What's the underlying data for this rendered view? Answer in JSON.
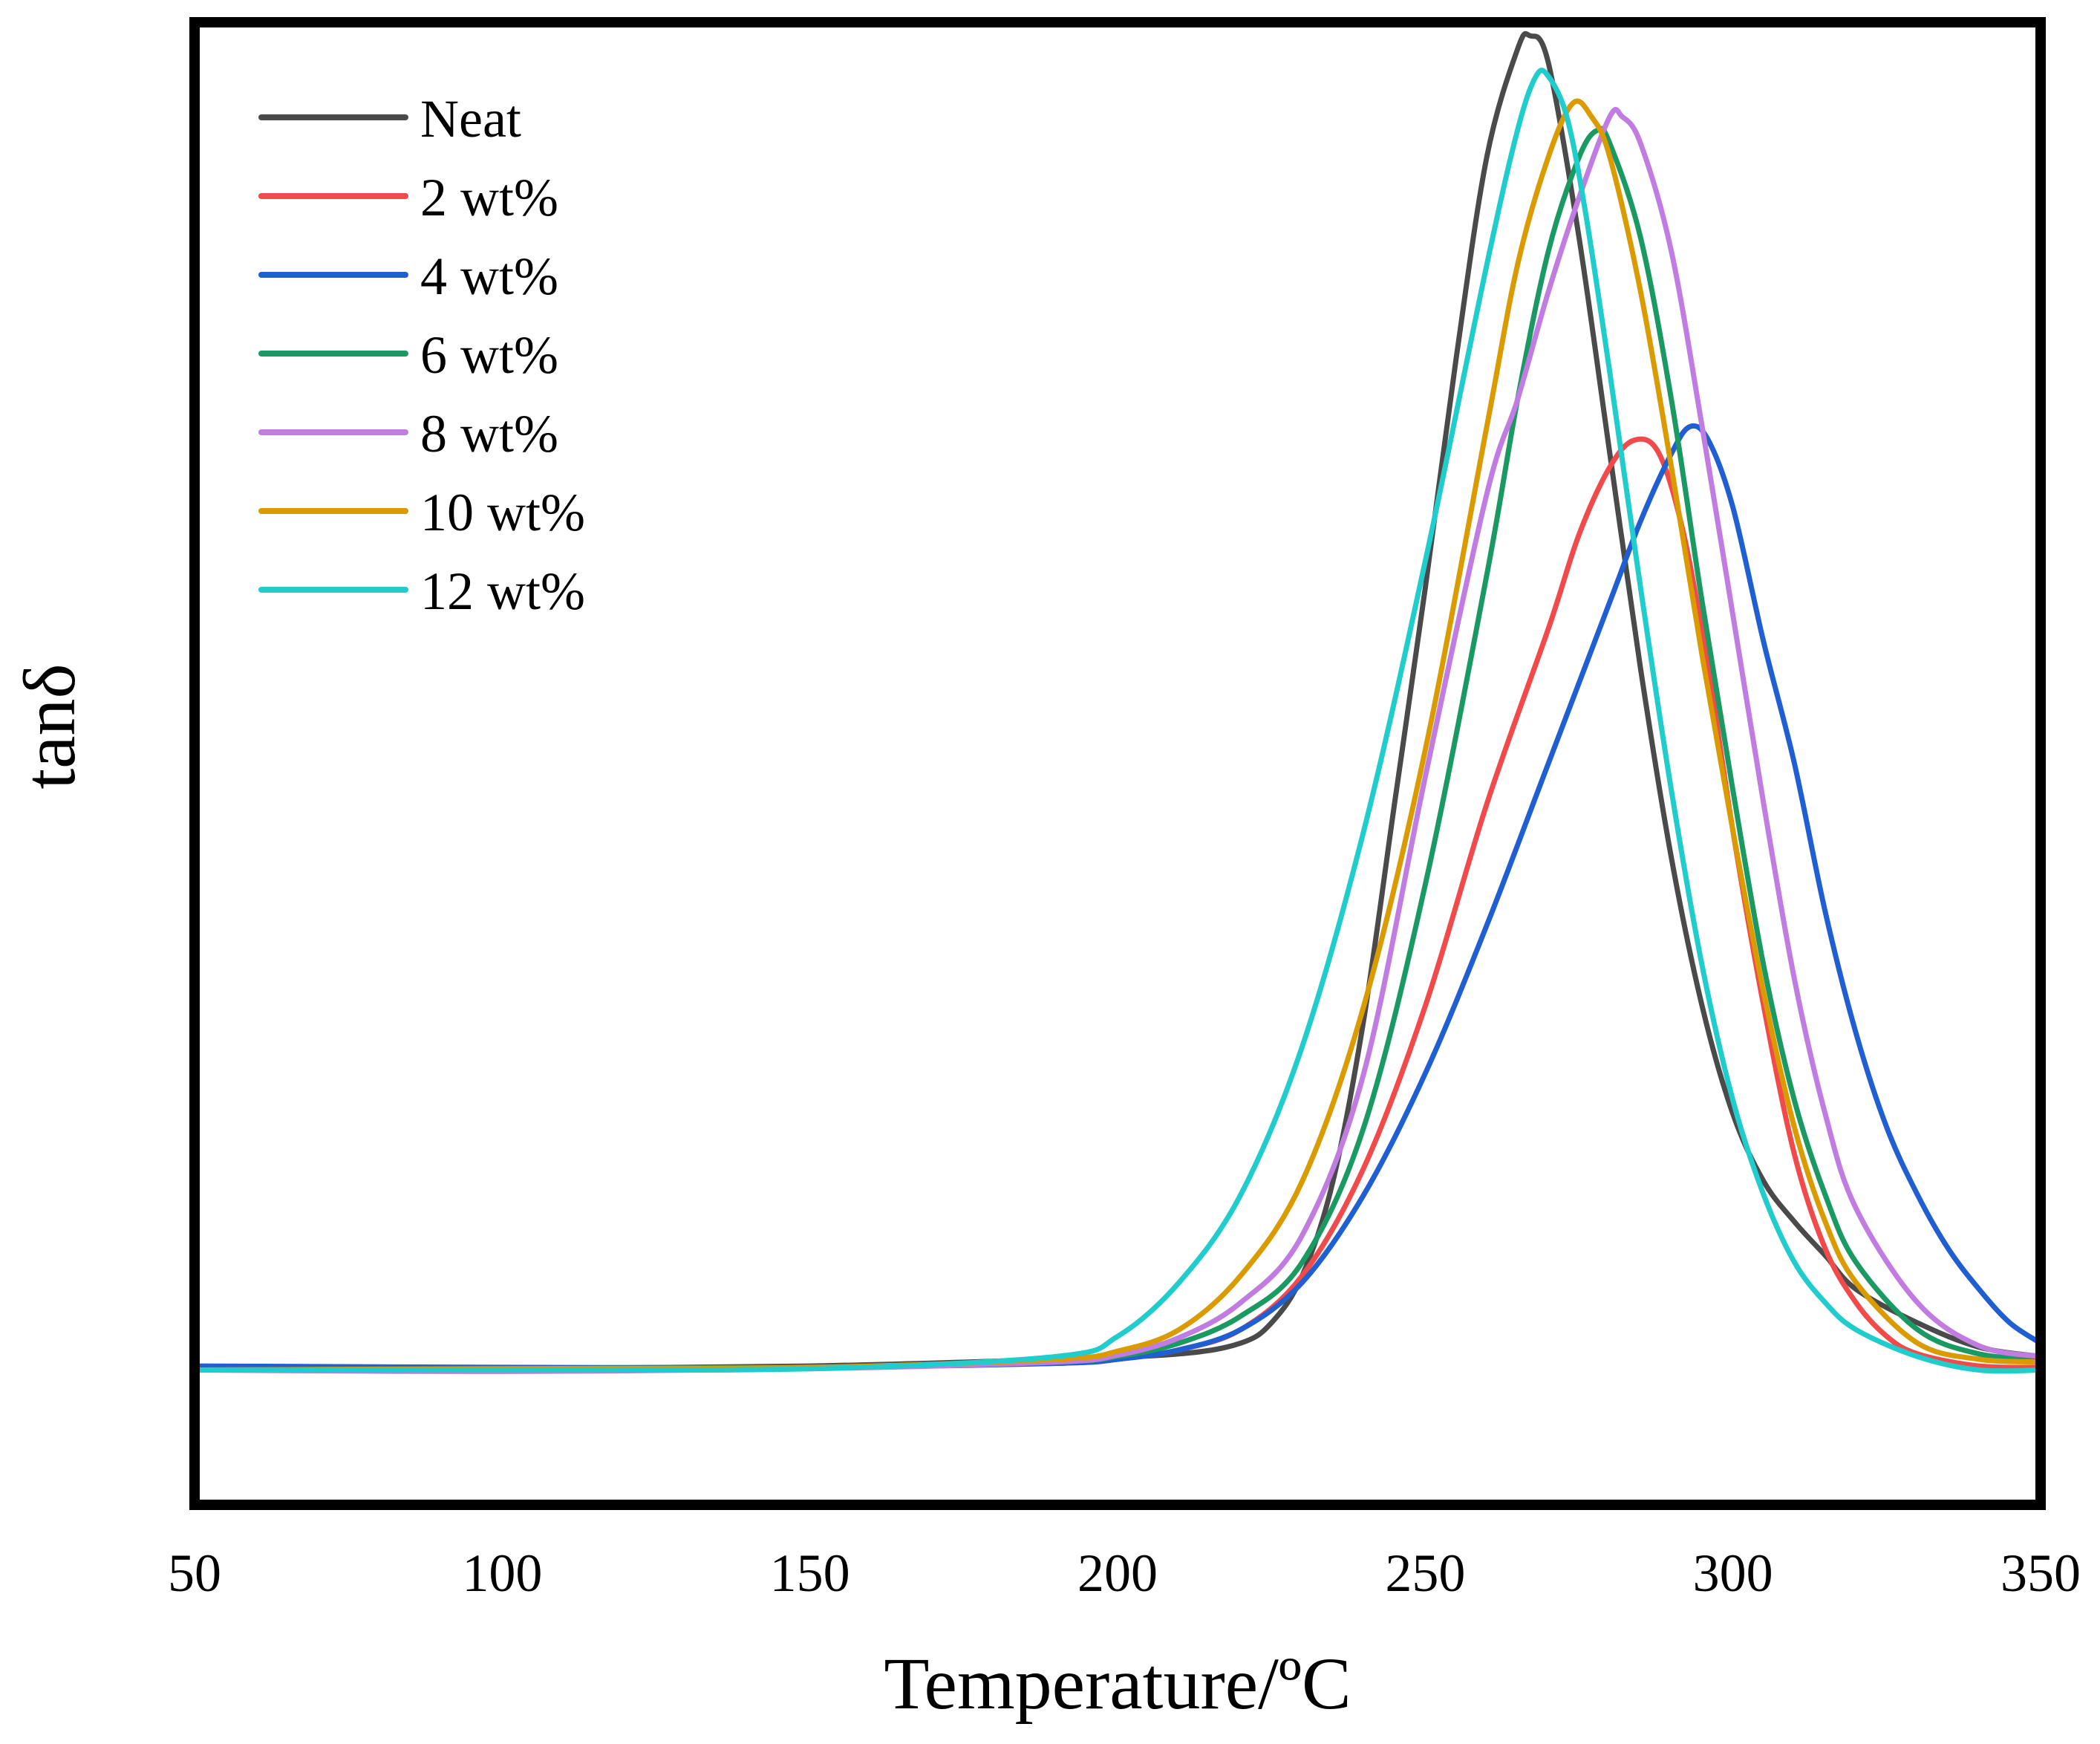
{
  "chart_data": {
    "type": "line",
    "title": "",
    "xlabel": "Temperature/ºC",
    "ylabel": "tanδ",
    "xlim": [
      50,
      350
    ],
    "ylim": [
      -0.1,
      1.0
    ],
    "xticks": [
      "50",
      "100",
      "150",
      "200",
      "250",
      "300",
      "350"
    ],
    "yticks_shown": false,
    "grid": false,
    "legend_position": "top-left",
    "series": [
      {
        "name": "Neat",
        "color": "#4a4a4a",
        "x": [
          50,
          100,
          150,
          190,
          210,
          220,
          225,
          230,
          235,
          240,
          245,
          250,
          255,
          260,
          265,
          267,
          270,
          275,
          280,
          285,
          290,
          295,
          300,
          305,
          310,
          315,
          320,
          330,
          340,
          350
        ],
        "y": [
          0.0,
          0.001,
          0.003,
          0.008,
          0.012,
          0.02,
          0.035,
          0.07,
          0.14,
          0.26,
          0.42,
          0.58,
          0.75,
          0.9,
          0.98,
          0.99,
          0.97,
          0.84,
          0.68,
          0.52,
          0.38,
          0.27,
          0.19,
          0.14,
          0.11,
          0.085,
          0.06,
          0.035,
          0.017,
          0.01
        ]
      },
      {
        "name": "2 wt%",
        "color": "#f14a4a",
        "x": [
          50,
          100,
          150,
          190,
          200,
          210,
          220,
          230,
          240,
          250,
          260,
          270,
          275,
          280,
          284,
          288,
          292,
          296,
          300,
          305,
          310,
          315,
          320,
          325,
          330,
          340,
          350
        ],
        "y": [
          0.0,
          0.001,
          0.002,
          0.005,
          0.008,
          0.015,
          0.03,
          0.07,
          0.15,
          0.27,
          0.42,
          0.55,
          0.62,
          0.67,
          0.69,
          0.68,
          0.62,
          0.52,
          0.4,
          0.27,
          0.16,
          0.09,
          0.05,
          0.025,
          0.012,
          0.003,
          0.002
        ]
      },
      {
        "name": "4 wt%",
        "color": "#1f5fd2",
        "x": [
          50,
          100,
          150,
          190,
          200,
          210,
          220,
          230,
          240,
          250,
          260,
          270,
          280,
          285,
          290,
          293,
          296,
          300,
          305,
          310,
          315,
          320,
          325,
          330,
          335,
          340,
          345,
          350
        ],
        "y": [
          0.003,
          0.002,
          0.002,
          0.005,
          0.008,
          0.015,
          0.03,
          0.065,
          0.13,
          0.22,
          0.33,
          0.45,
          0.57,
          0.63,
          0.68,
          0.7,
          0.69,
          0.64,
          0.54,
          0.45,
          0.34,
          0.25,
          0.18,
          0.13,
          0.09,
          0.06,
          0.035,
          0.02
        ]
      },
      {
        "name": "6 wt%",
        "color": "#1a9a62",
        "x": [
          50,
          100,
          150,
          190,
          200,
          210,
          220,
          230,
          240,
          250,
          260,
          265,
          270,
          275,
          278,
          280,
          285,
          290,
          295,
          300,
          305,
          310,
          315,
          320,
          330,
          340,
          350
        ],
        "y": [
          0.0,
          0.001,
          0.002,
          0.006,
          0.01,
          0.02,
          0.04,
          0.08,
          0.18,
          0.36,
          0.59,
          0.72,
          0.83,
          0.9,
          0.92,
          0.91,
          0.84,
          0.72,
          0.57,
          0.43,
          0.3,
          0.2,
          0.13,
          0.08,
          0.03,
          0.012,
          0.008
        ]
      },
      {
        "name": "8 wt%",
        "color": "#c07ce0",
        "x": [
          50,
          100,
          150,
          190,
          200,
          210,
          220,
          230,
          240,
          250,
          260,
          265,
          270,
          275,
          280,
          282,
          285,
          290,
          295,
          300,
          305,
          310,
          315,
          320,
          330,
          340,
          350
        ],
        "y": [
          0.0,
          -0.001,
          0.001,
          0.006,
          0.011,
          0.024,
          0.05,
          0.1,
          0.22,
          0.44,
          0.65,
          0.72,
          0.8,
          0.87,
          0.93,
          0.93,
          0.91,
          0.83,
          0.7,
          0.56,
          0.42,
          0.29,
          0.19,
          0.12,
          0.05,
          0.018,
          0.01
        ]
      },
      {
        "name": "10 wt%",
        "color": "#d99b00",
        "x": [
          50,
          100,
          150,
          190,
          200,
          210,
          220,
          230,
          240,
          250,
          260,
          265,
          270,
          274,
          277,
          280,
          285,
          290,
          295,
          300,
          305,
          310,
          315,
          320,
          330,
          340,
          350
        ],
        "y": [
          0.0,
          0.001,
          0.002,
          0.008,
          0.014,
          0.03,
          0.07,
          0.14,
          0.27,
          0.46,
          0.7,
          0.82,
          0.9,
          0.94,
          0.93,
          0.9,
          0.8,
          0.67,
          0.53,
          0.4,
          0.28,
          0.18,
          0.11,
          0.065,
          0.02,
          0.008,
          0.006
        ]
      },
      {
        "name": "12 wt%",
        "color": "#21cccc",
        "x": [
          50,
          100,
          150,
          190,
          200,
          210,
          220,
          230,
          240,
          250,
          260,
          265,
          268,
          270,
          273,
          276,
          280,
          285,
          290,
          295,
          300,
          305,
          310,
          315,
          320,
          330,
          340,
          350
        ],
        "y": [
          0.0,
          0.0,
          0.001,
          0.01,
          0.025,
          0.065,
          0.13,
          0.24,
          0.4,
          0.6,
          0.82,
          0.92,
          0.96,
          0.96,
          0.93,
          0.86,
          0.74,
          0.58,
          0.43,
          0.3,
          0.2,
          0.13,
          0.08,
          0.05,
          0.03,
          0.01,
          0.0,
          0.0
        ]
      }
    ]
  }
}
